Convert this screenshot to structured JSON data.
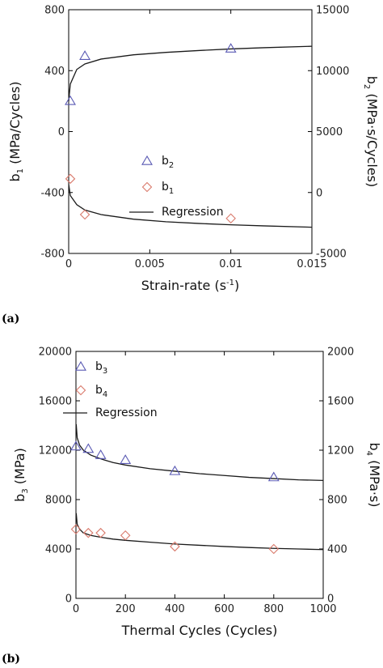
{
  "chart_data": [
    {
      "panel_label": "(a)",
      "type": "scatter",
      "xlabel": "Strain-rate (s",
      "xlabel_sup": "-1",
      "xlabel_end": ")",
      "ylabel_left_base": "b",
      "ylabel_left_sub": "1",
      "ylabel_left_unit": " (MPa/Cycles)",
      "ylabel_right_base": "b",
      "ylabel_right_sub": "2",
      "ylabel_right_unit": " (MPa·s/Cycles)",
      "xlim": [
        0,
        0.015
      ],
      "ylim_left": [
        -800,
        800
      ],
      "ylim_right": [
        -5000,
        15000
      ],
      "xticks": [
        0,
        0.005,
        0.01,
        0.015
      ],
      "xtick_labels": [
        "0",
        "0.005",
        "0.01",
        "0.015"
      ],
      "yticks_left": [
        -800,
        -400,
        0,
        400,
        800
      ],
      "ytick_labels_left": [
        "-800",
        "-400",
        "0",
        "400",
        "800"
      ],
      "yticks_right": [
        -5000,
        0,
        5000,
        10000,
        15000
      ],
      "ytick_labels_right": [
        "-5000",
        "0",
        "5000",
        "10000",
        "15000"
      ],
      "legend": [
        {
          "base": "b",
          "sub": "2",
          "marker": "triangle"
        },
        {
          "base": "b",
          "sub": "1",
          "marker": "diamond"
        },
        {
          "base": "Regression",
          "sub": "",
          "marker": "line"
        }
      ],
      "series": [
        {
          "axis": "right",
          "marker": "triangle",
          "color": "#5a5ab4",
          "x": [
            0.0001,
            0.001,
            0.01
          ],
          "y": [
            7500,
            11200,
            11800
          ]
        },
        {
          "axis": "left",
          "marker": "diamond",
          "color": "#d97a6c",
          "x": [
            0.0001,
            0.001,
            0.01
          ],
          "y": [
            -310,
            -545,
            -570
          ]
        }
      ],
      "regression": [
        {
          "axis": "right",
          "x": [
            0.0,
            0.0001,
            0.0005,
            0.001,
            0.002,
            0.004,
            0.006,
            0.008,
            0.01,
            0.012,
            0.015
          ],
          "y": [
            7500,
            8900,
            10100,
            10550,
            10950,
            11300,
            11500,
            11650,
            11780,
            11880,
            12000
          ]
        },
        {
          "axis": "left",
          "x": [
            0.0,
            0.0001,
            0.0005,
            0.001,
            0.002,
            0.004,
            0.006,
            0.008,
            0.01,
            0.012,
            0.015
          ],
          "y": [
            -345,
            -420,
            -480,
            -515,
            -545,
            -575,
            -592,
            -603,
            -612,
            -619,
            -628
          ]
        }
      ]
    },
    {
      "panel_label": "(b)",
      "type": "scatter",
      "xlabel": "Thermal Cycles (Cycles)",
      "xlabel_sup": "",
      "xlabel_end": "",
      "ylabel_left_base": "b",
      "ylabel_left_sub": "3",
      "ylabel_left_unit": " (MPa)",
      "ylabel_right_base": "b",
      "ylabel_right_sub": "4",
      "ylabel_right_unit": " (MPa·s)",
      "xlim": [
        0,
        1000
      ],
      "ylim_left": [
        0,
        20000
      ],
      "ylim_right": [
        0,
        2000
      ],
      "xticks": [
        0,
        200,
        400,
        600,
        800,
        1000
      ],
      "xtick_labels": [
        "0",
        "200",
        "400",
        "600",
        "800",
        "1000"
      ],
      "yticks_left": [
        0,
        4000,
        8000,
        12000,
        16000,
        20000
      ],
      "ytick_labels_left": [
        "0",
        "4000",
        "8000",
        "12000",
        "16000",
        "20000"
      ],
      "yticks_right": [
        0,
        400,
        800,
        1200,
        1600,
        2000
      ],
      "ytick_labels_right": [
        "0",
        "400",
        "800",
        "1200",
        "1600",
        "2000"
      ],
      "legend": [
        {
          "base": "b",
          "sub": "3",
          "marker": "triangle"
        },
        {
          "base": "b",
          "sub": "4",
          "marker": "diamond"
        },
        {
          "base": "Regression",
          "sub": "",
          "marker": "line"
        }
      ],
      "series": [
        {
          "axis": "left",
          "marker": "triangle",
          "color": "#5a5ab4",
          "x": [
            0,
            50,
            100,
            200,
            400,
            800
          ],
          "y": [
            12300,
            12100,
            11600,
            11200,
            10300,
            9800
          ]
        },
        {
          "axis": "right",
          "marker": "diamond",
          "color": "#d97a6c",
          "x": [
            0,
            50,
            100,
            200,
            400,
            800
          ],
          "y": [
            560,
            530,
            530,
            510,
            420,
            400
          ]
        }
      ],
      "regression": [
        {
          "axis": "left",
          "x": [
            1,
            5,
            15,
            30,
            60,
            100,
            150,
            200,
            300,
            400,
            500,
            600,
            700,
            800,
            900,
            1000
          ],
          "y": [
            14100,
            13000,
            12400,
            12000,
            11600,
            11300,
            11000,
            10800,
            10500,
            10300,
            10100,
            9950,
            9800,
            9700,
            9600,
            9550
          ]
        },
        {
          "axis": "right",
          "x": [
            1,
            5,
            15,
            30,
            60,
            100,
            150,
            200,
            300,
            400,
            500,
            600,
            700,
            800,
            900,
            1000
          ],
          "y": [
            690,
            600,
            560,
            530,
            510,
            495,
            480,
            470,
            455,
            440,
            430,
            420,
            412,
            405,
            400,
            395
          ]
        }
      ]
    }
  ]
}
